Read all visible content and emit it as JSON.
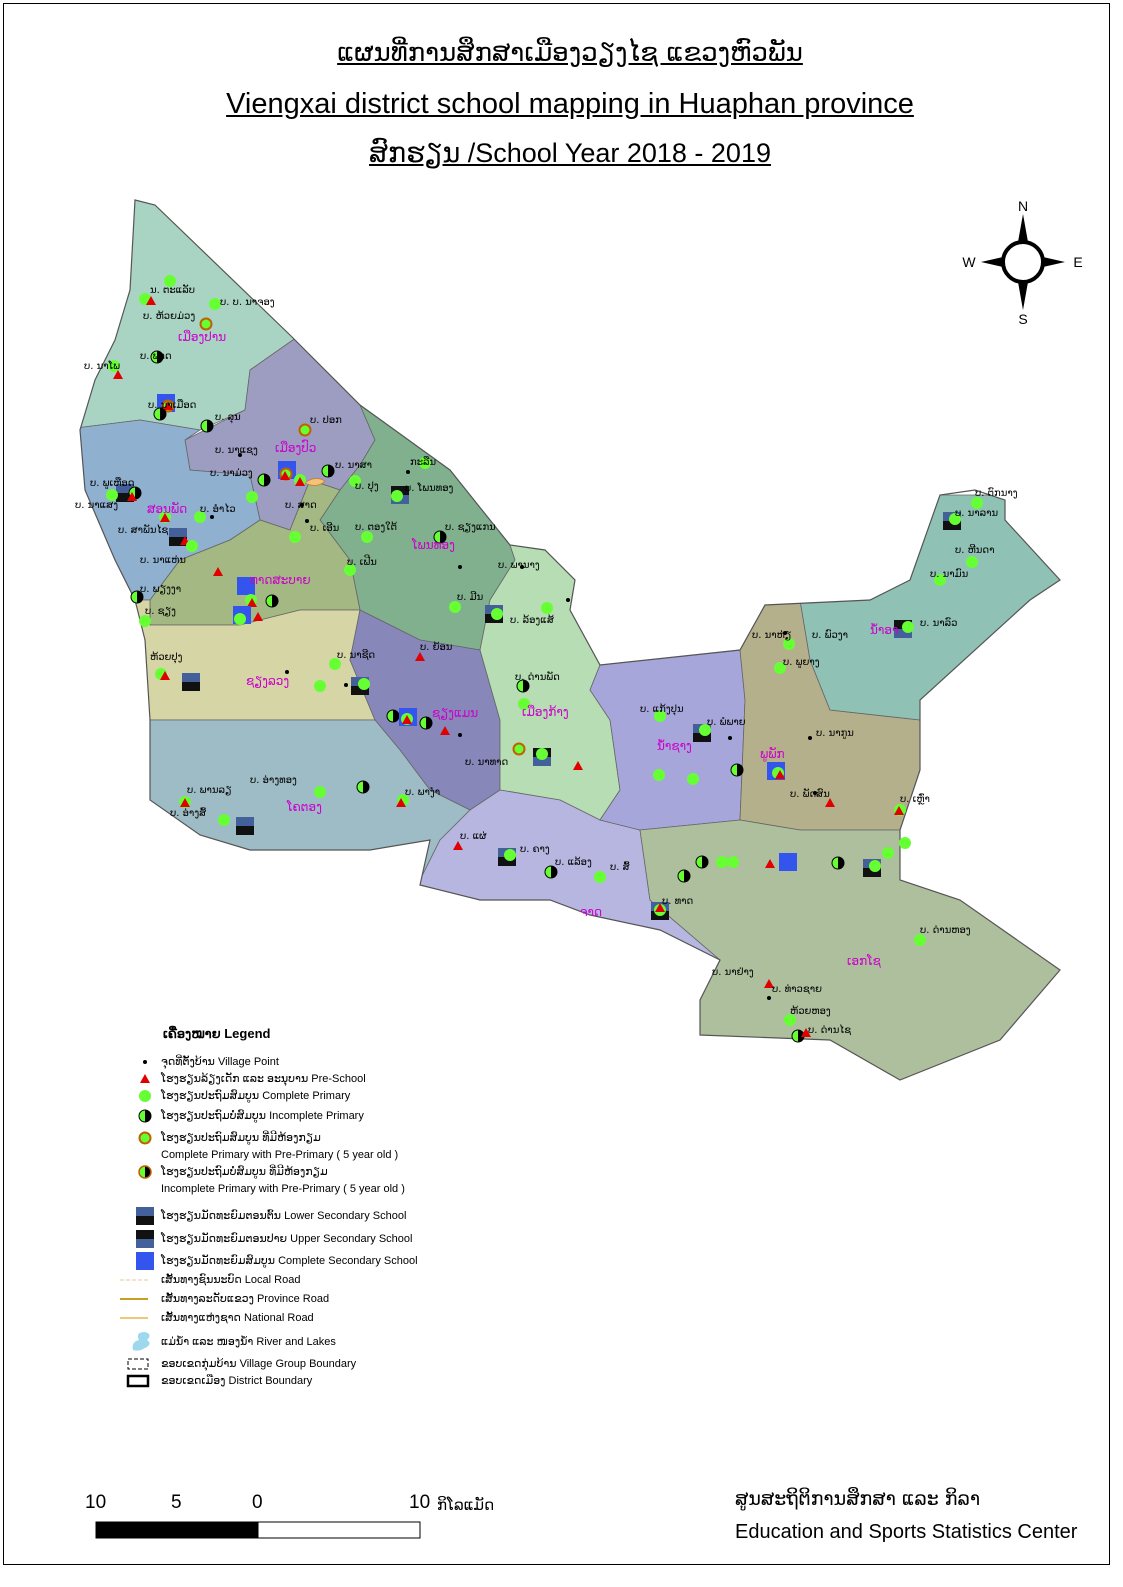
{
  "title": {
    "lao": "ແຜນທີ່ການສຶກສາເມືອງວຽງໄຊ ແຂວງຫົວພັນ",
    "english": "Viengxai district  school mapping in Huaphan province",
    "year": "ສົກຮຽນ /School  Year 2018 - 2019"
  },
  "compass": {
    "n": "N",
    "s": "S",
    "e": "E",
    "w": "W"
  },
  "colors": {
    "village_point": "#000000",
    "pre_school": "#e00000",
    "complete_primary": "#66ff33",
    "pre_primary_ring": "#c06000",
    "complete_secondary": "#3355ee",
    "lower_secondary_top": "#44609a",
    "region_label": "#cc00cc"
  },
  "regions": [
    {
      "name": "ເມືອງປານ",
      "color": "#a9d4c4"
    },
    {
      "name": "ເມືອງປົວ",
      "color": "#9d9dc2"
    },
    {
      "name": "ສອນພັດ",
      "color": "#8fb0cf"
    },
    {
      "name": "ໂພນທອງ",
      "color": "#80b08e"
    },
    {
      "name": "ທາດສະບາຍ",
      "color": "#a3b882"
    },
    {
      "name": "ຊຽງລວງ",
      "color": "#d5d5a6"
    },
    {
      "name": "ຊຽງແມນ",
      "color": "#8787ba"
    },
    {
      "name": "ເມືອງກ້າງ",
      "color": "#b6ddb3"
    },
    {
      "name": "ໂຄຕອງ",
      "color": "#9ebcc6"
    },
    {
      "name": "ຈາດ",
      "color": "#b6b6e0"
    },
    {
      "name": "ນ້ຳຊາງ",
      "color": "#a6a6da"
    },
    {
      "name": "ພູພັກ",
      "color": "#b5b08c"
    },
    {
      "name": "ນ້ຳອາ",
      "color": "#8fc1b5"
    },
    {
      "name": "ເອກໂຊ",
      "color": "#adbf9d"
    }
  ],
  "villages": [
    "ນ. ຕະແລັບ",
    "ບ. ບ. ນາຈອງ",
    "ບ. ຫ້ວຍມ່ວງ",
    "ບ. ຟາດ",
    "ບ. ນາໂພ",
    "ບ. ນາເມືອດ",
    "ບ. ລຸນ",
    "ບ. ປອກ",
    "ບ. ນາແຊງ",
    "ບ. ນາມ່ວງ",
    "ບ. ນາສາ",
    "ກະລືນ",
    "ບ. ປຸງ",
    "ບ. ໂພນທອງ",
    "ບ. ພູເຫືອດ",
    "ບ. ນາແສງ",
    "ບ. ອຳໄວ",
    "ບ. ສາດ",
    "ບ. ສາພັນໄຊ",
    "ບ. ເອີນ",
    "ບ. ຕອງໃຕ້",
    "ບ. ຊຽງແກນ",
    "ບ. ນາແຫ່ນ",
    "ບ. ເຟີນ",
    "ບ. ພຽງງາ",
    "ບ. ພານາງ",
    "ບ. ມີນ",
    "ບ. ລ້ອງແສ້",
    "ບ. ຊຽງ",
    "ຫ້ວຍປຸງ",
    "ບ. ນາຊີດ",
    "ບ. ຍ້ອນ",
    "ບ. ດ່ານພັດ",
    "ບ. ນາທາດ",
    "ບ. ແກ້ງປຸນ",
    "ບ. ພໍພາຍ",
    "ບ. ນາກູນ",
    "ບ. ພູຍາງ",
    "ບ. ນາຫ່ຽ",
    "ບ. ພົວງາ",
    "ບ. ນາລົວ",
    "ບ. ຫີນດາ",
    "ບ. ນາມົນ",
    "ບ. ຕົກນາງ",
    "ບ. ນາລານ",
    "ບ. ພານລຽ",
    "ບ. ອ່າງສົ້",
    "ບ. ອ່າງທອງ",
    "ບ. ພາງຳ",
    "ບ. ແຜ່",
    "ບ. ຄາງ",
    "ບ. ແລ້ອງ",
    "ບ. ສົ້",
    "ບ. ທາດ",
    "ບ. ເຫຼົ່າ",
    "ບ. ພັດສົນ",
    "ບ. ດ່ານຫອງ",
    "ບ. ນາຢ່າງ",
    "ບ. ທ່າວຊາຍ",
    "ຫ້ວຍຫອງ",
    "ບ. ດ່ານໄຊ"
  ],
  "legend": {
    "title": "ເຄື່ອງໝາຍ Legend",
    "items": [
      {
        "symbol": "village-point",
        "label": "ຈຸດທີ່ຕັ້ງບ້ານ Village Point"
      },
      {
        "symbol": "pre-school",
        "label": "ໂຮງຮຽນລ້ຽງເດັກ ແລະ ອະນຸບານ Pre-School"
      },
      {
        "symbol": "complete-primary",
        "label": "ໂຮງຮຽນປະຖົມສົມບູນ Complete Primary"
      },
      {
        "symbol": "incomplete-primary",
        "label": "ໂຮງຮຽນປະຖົມບໍ່ສົມບູນ Incomplete  Primary"
      },
      {
        "symbol": "complete-primary-pre",
        "label": "ໂຮງຮຽນປະຖົມສົມບູນ ທີ່ມີຫ້ອງກຽມ",
        "label2": "Complete Primary  with Pre-Primary ( 5 year old )"
      },
      {
        "symbol": "incomplete-primary-pre",
        "label": "ໂຮງຮຽນປະຖົມບໍ່ສົມບູນ ທີ່ມີຫ້ອງກຽມ",
        "label2": "Incomplete  Primary with Pre-Primary ( 5 year old )"
      },
      {
        "symbol": "lower-secondary",
        "label": "ໂຮງຮຽນມັດທະຍົມຕອນຕົ້ນ Lower Secondary School"
      },
      {
        "symbol": "upper-secondary",
        "label": "ໂຮງຮຽນມັດທະຍົມຕອນປາຍ Upper Secondary School"
      },
      {
        "symbol": "complete-secondary",
        "label": "ໂຮງຮຽນມັດທະຍົມສົມບູນ Complete Secondary School"
      },
      {
        "symbol": "local-road",
        "label": "ເສັ້ນທາງຊົນນະບົດ Local Road"
      },
      {
        "symbol": "province-road",
        "label": "ເສັ້ນທາງລະດັບແຂວງ Province Road"
      },
      {
        "symbol": "national-road",
        "label": "ເສັ້ນທາງແຫ່ງຊາດ  National Road"
      },
      {
        "symbol": "river-lakes",
        "label": "ແມ່ນ້ຳ ແລະ ໜອງນ້ຳ River and Lakes"
      },
      {
        "symbol": "village-group-boundary",
        "label": "ຂອບເຂດກຸ່ມບ້ານ Village Group Boundary"
      },
      {
        "symbol": "district-boundary",
        "label": "ຂອບເຂດເມືອງ District Boundary"
      }
    ]
  },
  "scale": {
    "labels": [
      "10",
      "5",
      "0",
      "10"
    ],
    "unit": "ກິໂລແມັດ"
  },
  "footer": {
    "lao": "ສູນສະຖິຕິການສຶກສາ ແລະ ກິລາ",
    "english": "Education and Sports Statistics Center"
  }
}
